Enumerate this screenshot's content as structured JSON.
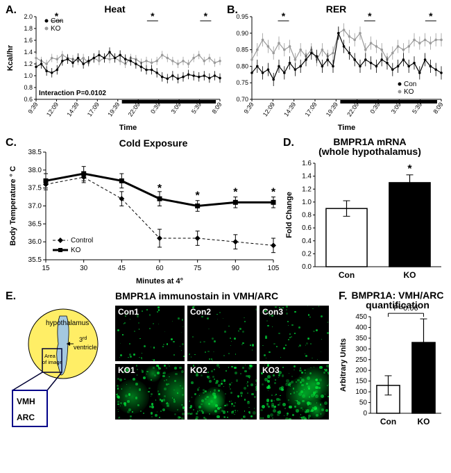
{
  "colors": {
    "con": "#000000",
    "ko": "#9a9a9a",
    "axis": "#000000",
    "bg": "#ffffff",
    "barFillOpen": "#ffffff",
    "barFillSolid": "#000000",
    "green": "#00e040",
    "darkbar_x": "#000000",
    "schematic_circle": "#ffee66",
    "schematic_ventricle": "#a4c8e0"
  },
  "panelA": {
    "label": "A.",
    "type": "line",
    "title": "Heat",
    "ylabel": "Kcal/hr",
    "xlabel": "Time",
    "ylim": [
      0.6,
      2.0
    ],
    "ytick_step": 0.2,
    "xticks": [
      "9:39",
      "12:09",
      "14:39",
      "17:09",
      "19:39",
      "22:09",
      "0:39",
      "3:09",
      "5:39",
      "8:09"
    ],
    "darkbar": {
      "from": 4.2,
      "to": 8.8
    },
    "interaction_text": "Interaction P=0.0102",
    "legend": [
      "Con",
      "KO"
    ],
    "sig_marks": [
      1,
      5.7,
      8.3
    ],
    "con": [
      1.15,
      1.2,
      1.08,
      1.05,
      1.1,
      1.25,
      1.28,
      1.22,
      1.3,
      1.2,
      1.25,
      1.3,
      1.35,
      1.3,
      1.4,
      1.3,
      1.35,
      1.28,
      1.25,
      1.2,
      1.15,
      1.1,
      1.1,
      1.05,
      0.98,
      0.95,
      1.0,
      0.95,
      0.98,
      1.02,
      1.0,
      0.98,
      1.0,
      0.96,
      1.0,
      0.96
    ],
    "ko": [
      1.3,
      1.25,
      1.2,
      1.3,
      1.28,
      1.35,
      1.3,
      1.28,
      1.25,
      1.3,
      1.22,
      1.3,
      1.25,
      1.3,
      1.28,
      1.3,
      1.25,
      1.2,
      1.3,
      1.28,
      1.22,
      1.25,
      1.22,
      1.25,
      1.35,
      1.3,
      1.25,
      1.2,
      1.25,
      1.2,
      1.3,
      1.35,
      1.25,
      1.3,
      1.22,
      1.25
    ],
    "err_con": 0.08,
    "err_ko": 0.07
  },
  "panelB": {
    "label": "B.",
    "type": "line",
    "title": "RER",
    "ylabel": "",
    "xlabel": "Time",
    "ylim": [
      0.7,
      0.95
    ],
    "ytick_step": 0.05,
    "xticks": [
      "9:39",
      "12:09",
      "14:39",
      "17:09",
      "19:39",
      "22:09",
      "0:39",
      "3:09",
      "5:39",
      "8:09"
    ],
    "darkbar": {
      "from": 4.2,
      "to": 8.8
    },
    "legend": [
      "Con",
      "KO"
    ],
    "sig_marks": [
      1.5,
      5.6,
      8.5
    ],
    "con": [
      0.78,
      0.8,
      0.78,
      0.79,
      0.76,
      0.8,
      0.78,
      0.81,
      0.79,
      0.8,
      0.82,
      0.84,
      0.83,
      0.8,
      0.82,
      0.8,
      0.9,
      0.86,
      0.84,
      0.82,
      0.8,
      0.82,
      0.81,
      0.8,
      0.82,
      0.81,
      0.79,
      0.8,
      0.82,
      0.8,
      0.81,
      0.78,
      0.82,
      0.8,
      0.79,
      0.78
    ],
    "ko": [
      0.82,
      0.85,
      0.88,
      0.86,
      0.84,
      0.87,
      0.85,
      0.86,
      0.82,
      0.85,
      0.83,
      0.85,
      0.82,
      0.85,
      0.83,
      0.84,
      0.9,
      0.91,
      0.89,
      0.88,
      0.9,
      0.85,
      0.87,
      0.86,
      0.85,
      0.82,
      0.84,
      0.86,
      0.85,
      0.86,
      0.88,
      0.87,
      0.88,
      0.87,
      0.88,
      0.88
    ],
    "err_con": 0.02,
    "err_ko": 0.02
  },
  "panelC": {
    "label": "C.",
    "type": "line",
    "title": "Cold Exposure",
    "ylabel": "Body Temperature ° C",
    "xlabel": "Minutes at 4°",
    "ylim": [
      35.5,
      38.5
    ],
    "ytick_step": 0.5,
    "xticks": [
      15,
      30,
      45,
      60,
      75,
      90,
      105
    ],
    "legend": [
      "Control",
      "KO"
    ],
    "sig_marks_idx": [
      3,
      4,
      5,
      6
    ],
    "control": {
      "y": [
        37.6,
        37.8,
        37.2,
        36.1,
        36.1,
        36.0,
        35.9
      ],
      "err": [
        0.15,
        0.15,
        0.2,
        0.25,
        0.2,
        0.2,
        0.2
      ]
    },
    "ko": {
      "y": [
        37.7,
        37.9,
        37.7,
        37.2,
        37.0,
        37.1,
        37.1
      ],
      "err": [
        0.2,
        0.2,
        0.2,
        0.2,
        0.15,
        0.15,
        0.15
      ]
    },
    "control_style": {
      "dash": "4 3",
      "marker": "diamond",
      "color": "#000000",
      "lw": 1
    },
    "ko_style": {
      "dash": "",
      "marker": "square",
      "color": "#000000",
      "lw": 3
    }
  },
  "panelD": {
    "label": "D.",
    "type": "bar",
    "title": "BMPR1A mRNA\n(whole hypothalamus)",
    "ylabel": "Fold Change",
    "ylim": [
      0,
      1.6
    ],
    "ytick_step": 0.2,
    "categories": [
      "Con",
      "KO"
    ],
    "values": [
      0.9,
      1.3
    ],
    "errors": [
      0.12,
      0.12
    ],
    "fills": [
      "#ffffff",
      "#000000"
    ],
    "sig_idx": [
      1
    ]
  },
  "panelE": {
    "label": "E.",
    "title": "BMPR1A immunostain in VMH/ARC",
    "schematic": {
      "labels": {
        "hypothalamus": "hypothalamus",
        "ventricle": "3rd\nventricle",
        "area": "Area\nof image",
        "VMH": "VMH",
        "ARC": "ARC"
      }
    },
    "images": [
      "Con1",
      "Con2",
      "Con3",
      "KO1",
      "KO2",
      "KO3"
    ],
    "intensity": [
      0.18,
      0.12,
      0.22,
      0.55,
      0.7,
      0.85
    ]
  },
  "panelF": {
    "label": "F.",
    "type": "bar",
    "title": "BMPR1A: VMH/ARC\nquantification",
    "ylabel": "Arbitrary Units",
    "ylim": [
      0,
      450
    ],
    "ytick_step": 50,
    "categories": [
      "Con",
      "KO"
    ],
    "values": [
      130,
      330
    ],
    "errors": [
      45,
      110
    ],
    "fills": [
      "#ffffff",
      "#000000"
    ],
    "pvalue_text": "P=0.06"
  }
}
